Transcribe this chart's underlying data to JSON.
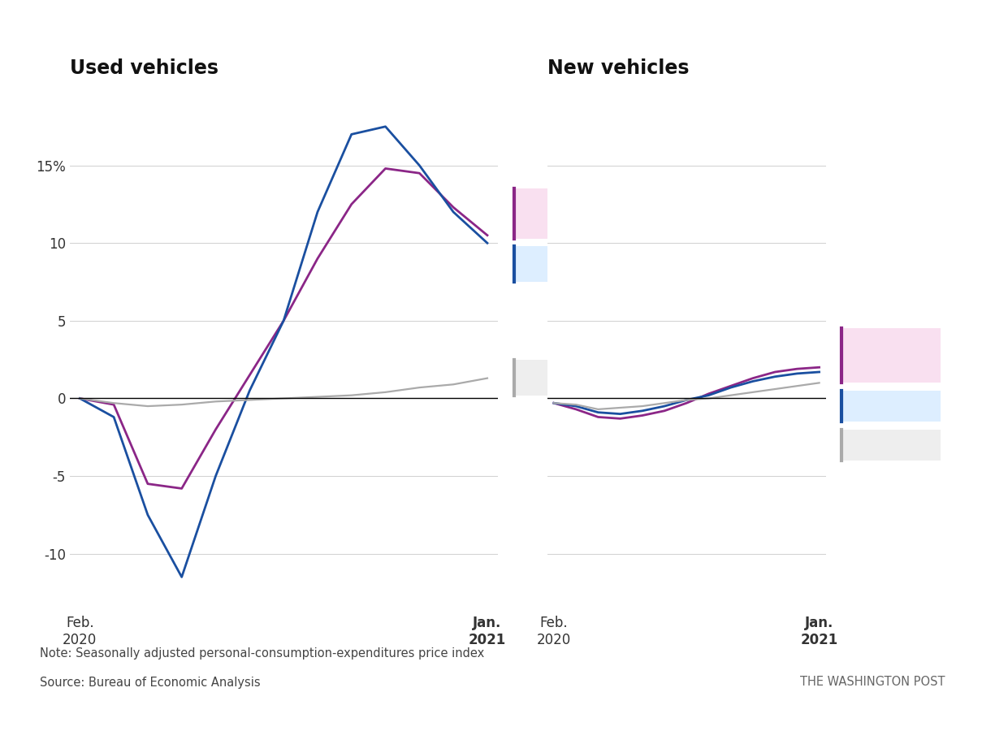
{
  "title_left": "Used vehicles",
  "title_right": "New vehicles",
  "background_color": "#ffffff",
  "note": "Note: Seasonally adjusted personal-consumption-expenditures price index",
  "source": "Source: Bureau of Economic Analysis",
  "attribution": "THE WASHINGTON POST",
  "used_trucks_suvs": [
    0.0,
    -0.4,
    -5.5,
    -5.8,
    -2.0,
    1.5,
    5.0,
    9.0,
    12.5,
    14.8,
    14.5,
    12.3,
    10.5
  ],
  "used_cars": [
    0.0,
    -1.2,
    -7.5,
    -11.5,
    -5.0,
    0.5,
    5.0,
    12.0,
    17.0,
    17.5,
    15.0,
    12.0,
    10.0
  ],
  "used_all_items": [
    0.0,
    -0.3,
    -0.5,
    -0.4,
    -0.2,
    -0.1,
    0.0,
    0.1,
    0.2,
    0.4,
    0.7,
    0.9,
    1.3
  ],
  "new_trucks_suvs": [
    -0.3,
    -0.7,
    -1.2,
    -1.3,
    -1.1,
    -0.8,
    -0.3,
    0.3,
    0.8,
    1.3,
    1.7,
    1.9,
    2.0
  ],
  "new_cars": [
    -0.3,
    -0.5,
    -0.9,
    -1.0,
    -0.8,
    -0.5,
    -0.1,
    0.2,
    0.7,
    1.1,
    1.4,
    1.6,
    1.7
  ],
  "new_all_items": [
    -0.3,
    -0.4,
    -0.7,
    -0.6,
    -0.5,
    -0.3,
    -0.1,
    0.0,
    0.2,
    0.4,
    0.6,
    0.8,
    1.0
  ],
  "color_trucks": "#8b2687",
  "color_cars": "#1a4fa0",
  "color_all": "#aaaaaa",
  "legend_trucks_bg": "#f9e0f0",
  "legend_cars_bg": "#ddeeff",
  "legend_all_bg": "#eeeeee",
  "ylim_used": [
    -12,
    20
  ],
  "ylim_new": [
    -12,
    20
  ],
  "yticks_used": [
    -10,
    -5,
    0,
    5,
    10,
    15
  ],
  "yticks_new": [
    -10,
    -5,
    0,
    5,
    10,
    15
  ],
  "title_fontsize": 17,
  "label_fontsize": 12,
  "tick_fontsize": 12,
  "note_fontsize": 10.5,
  "legend_fontsize": 12
}
